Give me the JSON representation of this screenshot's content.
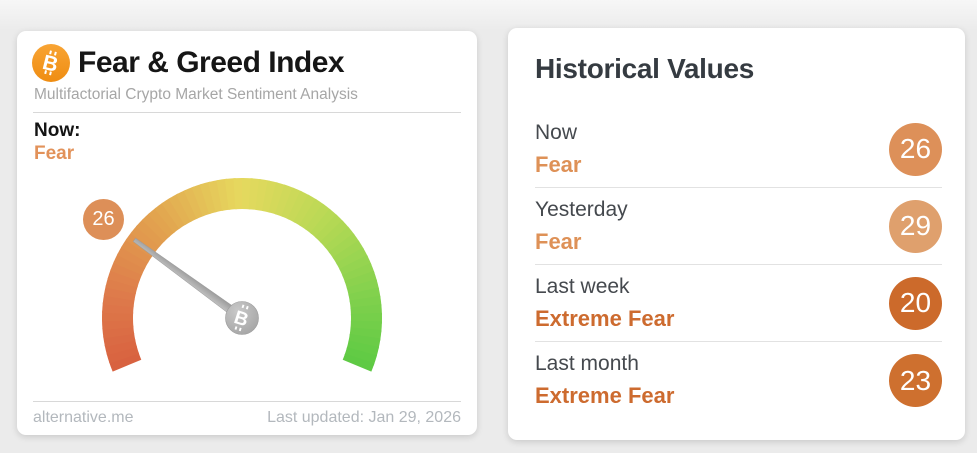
{
  "colors": {
    "page_bg": "#ebebeb",
    "bitcoin_orange": "#f2921c",
    "fear_orange": "#e2925a",
    "extreme_fear_orange": "#cd6b2f",
    "needle_gray": "#adadad",
    "hub_gray": "#a9a9a9",
    "divider_gray": "#d8d8d8",
    "footer_gray": "#b3b8bd"
  },
  "left_card": {
    "bitcoin_icon": "bitcoin-icon",
    "title": "Fear & Greed Index",
    "subtitle": "Multifactorial Crypto Market Sentiment Analysis",
    "now_label": "Now:",
    "now_value": "Fear",
    "now_value_color": "#e2925a",
    "source_link": "alternative.me",
    "last_updated": "Last updated: Jan 29, 2026"
  },
  "chart_data": {
    "type": "gauge",
    "title": "Fear & Greed Index",
    "min": 0,
    "max": 100,
    "value": 26,
    "classification": "Fear",
    "arc_span_degrees": 225,
    "badge_color": "#dd8f58",
    "needle_color": "#adadad",
    "color_stops": [
      {
        "pos": 0.0,
        "color": "#d8603f"
      },
      {
        "pos": 0.15,
        "color": "#de7b4b"
      },
      {
        "pos": 0.32,
        "color": "#e2a34f"
      },
      {
        "pos": 0.5,
        "color": "#e6d95e"
      },
      {
        "pos": 0.68,
        "color": "#b8d955"
      },
      {
        "pos": 0.85,
        "color": "#83d14d"
      },
      {
        "pos": 1.0,
        "color": "#5dca44"
      }
    ]
  },
  "historical": {
    "title": "Historical Values",
    "rows": [
      {
        "label": "Now",
        "classification": "Fear",
        "value": "26",
        "badge_color": "#dd9059",
        "class_color": "#de9157"
      },
      {
        "label": "Yesterday",
        "classification": "Fear",
        "value": "29",
        "badge_color": "#dfa06d",
        "class_color": "#de9157"
      },
      {
        "label": "Last week",
        "classification": "Extreme Fear",
        "value": "20",
        "badge_color": "#cc6a2b",
        "class_color": "#cd6b2f"
      },
      {
        "label": "Last month",
        "classification": "Extreme Fear",
        "value": "23",
        "badge_color": "#ce702f",
        "class_color": "#cd6b2f"
      }
    ]
  }
}
